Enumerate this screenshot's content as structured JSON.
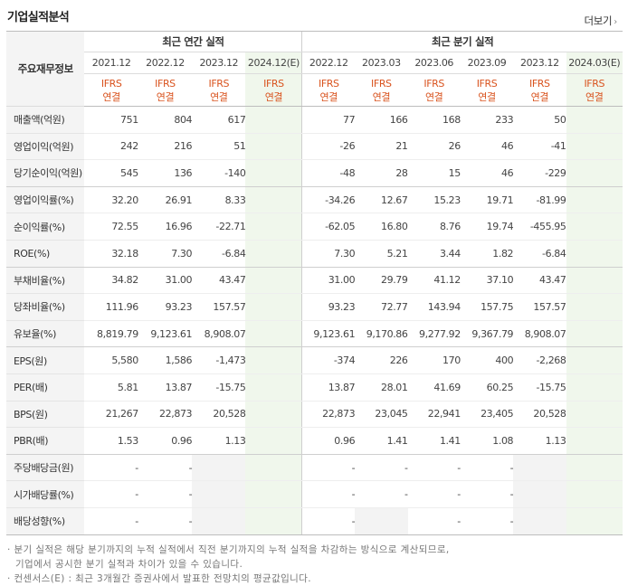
{
  "section_title": "기업실적분석",
  "more_button": "더보기",
  "row_header": "주요재무정보",
  "groups": {
    "annual": "최근 연간 실적",
    "quarterly": "최근 분기 실적"
  },
  "periods": [
    "2021.12",
    "2022.12",
    "2023.12",
    "2024.12(E)",
    "2022.12",
    "2023.03",
    "2023.06",
    "2023.09",
    "2023.12",
    "2024.03(E)"
  ],
  "ifrs": {
    "line1": "IFRS",
    "line2": "연결"
  },
  "rows": [
    {
      "label": "매출액(억원)",
      "values": [
        "751",
        "804",
        "617",
        "",
        "77",
        "166",
        "168",
        "233",
        "50",
        ""
      ]
    },
    {
      "label": "영업이익(억원)",
      "values": [
        "242",
        "216",
        "51",
        "",
        "-26",
        "21",
        "26",
        "46",
        "-41",
        ""
      ]
    },
    {
      "label": "당기순이익(억원)",
      "values": [
        "545",
        "136",
        "-140",
        "",
        "-48",
        "28",
        "15",
        "46",
        "-229",
        ""
      ]
    },
    {
      "label": "영업이익률(%)",
      "values": [
        "32.20",
        "26.91",
        "8.33",
        "",
        "-34.26",
        "12.67",
        "15.23",
        "19.71",
        "-81.99",
        ""
      ]
    },
    {
      "label": "순이익률(%)",
      "values": [
        "72.55",
        "16.96",
        "-22.71",
        "",
        "-62.05",
        "16.80",
        "8.76",
        "19.74",
        "-455.95",
        ""
      ]
    },
    {
      "label": "ROE(%)",
      "values": [
        "32.18",
        "7.30",
        "-6.84",
        "",
        "7.30",
        "5.21",
        "3.44",
        "1.82",
        "-6.84",
        ""
      ]
    },
    {
      "label": "부채비율(%)",
      "values": [
        "34.82",
        "31.00",
        "43.47",
        "",
        "31.00",
        "29.79",
        "41.12",
        "37.10",
        "43.47",
        ""
      ]
    },
    {
      "label": "당좌비율(%)",
      "values": [
        "111.96",
        "93.23",
        "157.57",
        "",
        "93.23",
        "72.77",
        "143.94",
        "157.75",
        "157.57",
        ""
      ]
    },
    {
      "label": "유보율(%)",
      "values": [
        "8,819.79",
        "9,123.61",
        "8,908.07",
        "",
        "9,123.61",
        "9,170.86",
        "9,277.92",
        "9,367.79",
        "8,908.07",
        ""
      ]
    },
    {
      "label": "EPS(원)",
      "values": [
        "5,580",
        "1,586",
        "-1,473",
        "",
        "-374",
        "226",
        "170",
        "400",
        "-2,268",
        ""
      ]
    },
    {
      "label": "PER(배)",
      "values": [
        "5.81",
        "13.87",
        "-15.75",
        "",
        "13.87",
        "28.01",
        "41.69",
        "60.25",
        "-15.75",
        ""
      ]
    },
    {
      "label": "BPS(원)",
      "values": [
        "21,267",
        "22,873",
        "20,528",
        "",
        "22,873",
        "23,045",
        "22,941",
        "23,405",
        "20,528",
        ""
      ]
    },
    {
      "label": "PBR(배)",
      "values": [
        "1.53",
        "0.96",
        "1.13",
        "",
        "0.96",
        "1.41",
        "1.41",
        "1.08",
        "1.13",
        ""
      ]
    },
    {
      "label": "주당배당금(원)",
      "values": [
        "-",
        "-",
        "",
        "",
        "-",
        "-",
        "-",
        "-",
        "",
        ""
      ]
    },
    {
      "label": "시가배당률(%)",
      "values": [
        "-",
        "-",
        "",
        "",
        "-",
        "-",
        "-",
        "-",
        "",
        ""
      ]
    },
    {
      "label": "배당성향(%)",
      "values": [
        "-",
        "-",
        "",
        "",
        "-",
        "",
        "-",
        "-",
        "",
        ""
      ]
    }
  ],
  "footnotes": {
    "line1": "· 분기 실적은 해당 분기까지의 누적 실적에서 직전 분기까지의 누적 실적을 차감하는 방식으로 계산되므로,",
    "line2": "기업에서 공시한 분기 실적과 차이가 있을 수 있습니다.",
    "line3": "· 컨센서스(E) : 최근 3개월간 증권사에서 발표한 전망치의 평균값입니다."
  },
  "colors": {
    "negative": "#d9352a",
    "ifrs": "#d9531e",
    "estimate_bg": "#f0f7ec",
    "label_bg": "#f4f4f4"
  }
}
